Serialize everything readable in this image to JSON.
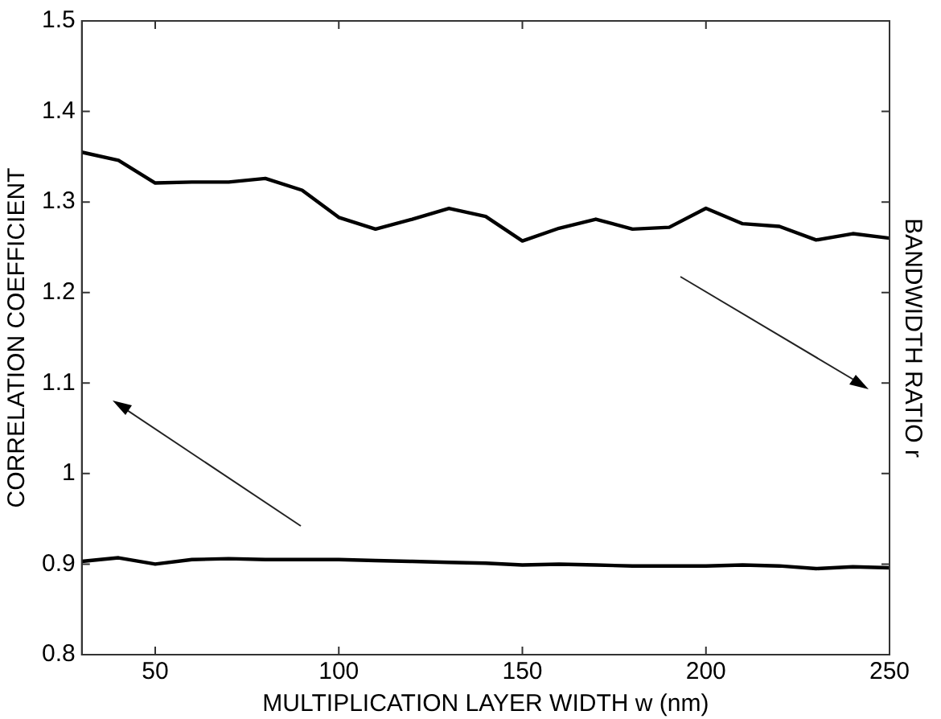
{
  "chart_data": {
    "type": "line",
    "xlabel": "MULTIPLICATION LAYER WIDTH w (nm)",
    "ylabel": "CORRELATION COEFFICIENT",
    "y2label": "BANDWIDTH RATIO r",
    "x": [
      30,
      40,
      50,
      60,
      70,
      80,
      90,
      100,
      110,
      120,
      130,
      140,
      150,
      160,
      170,
      180,
      190,
      200,
      210,
      220,
      230,
      240,
      250
    ],
    "series": [
      {
        "color": "#000000",
        "values": [
          1.355,
          1.346,
          1.321,
          1.322,
          1.322,
          1.326,
          1.313,
          1.283,
          1.27,
          1.281,
          1.293,
          1.284,
          1.257,
          1.271,
          1.281,
          1.27,
          1.272,
          1.293,
          1.276,
          1.273,
          1.258,
          1.265,
          1.26
        ]
      },
      {
        "color": "#000000",
        "values": [
          0.903,
          0.907,
          0.9,
          0.905,
          0.906,
          0.905,
          0.905,
          0.905,
          0.904,
          0.903,
          0.902,
          0.901,
          0.899,
          0.9,
          0.899,
          0.898,
          0.898,
          0.898,
          0.899,
          0.898,
          0.895,
          0.897,
          0.896
        ]
      }
    ],
    "xlim": [
      30,
      250
    ],
    "xticks": [
      50,
      100,
      150,
      200,
      250
    ],
    "ylim": [
      0.8,
      1.5
    ],
    "yticks": [
      0.8,
      0.9,
      1,
      1.1,
      1.2,
      1.3,
      1.4,
      1.5
    ],
    "grid": false,
    "legend": false,
    "marker": "none",
    "line_style": "solid"
  }
}
